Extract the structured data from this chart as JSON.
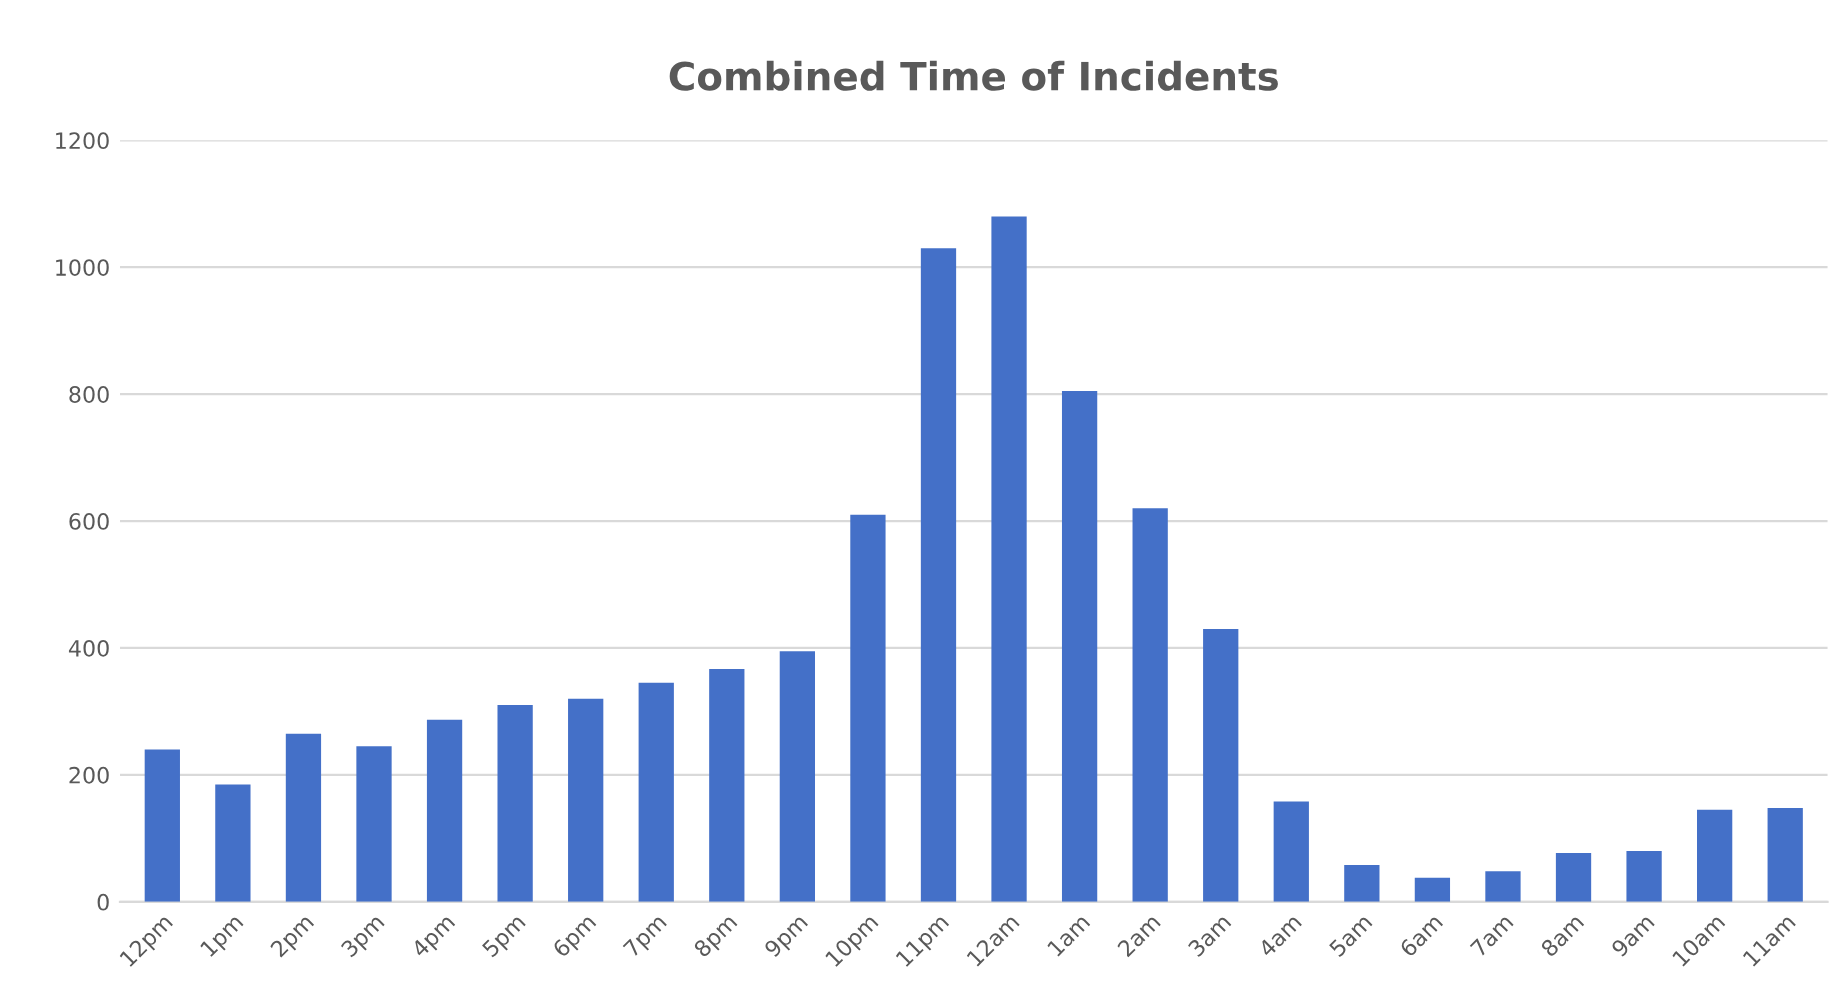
{
  "chart_data": {
    "type": "bar",
    "title": "Combined Time of Incidents",
    "categories": [
      "12pm",
      "1pm",
      "2pm",
      "3pm",
      "4pm",
      "5pm",
      "6pm",
      "7pm",
      "8pm",
      "9pm",
      "10pm",
      "11pm",
      "12am",
      "1am",
      "2am",
      "3am",
      "4am",
      "5am",
      "6am",
      "7am",
      "8am",
      "9am",
      "10am",
      "11am"
    ],
    "values": [
      240,
      185,
      265,
      245,
      287,
      310,
      320,
      345,
      367,
      395,
      610,
      1030,
      1080,
      805,
      620,
      430,
      158,
      58,
      38,
      48,
      77,
      80,
      145,
      148
    ],
    "color": "#4470c8",
    "ylim": [
      0,
      1200
    ],
    "yticks": [
      0,
      200,
      400,
      600,
      800,
      1000,
      1200
    ],
    "grid": "y"
  }
}
